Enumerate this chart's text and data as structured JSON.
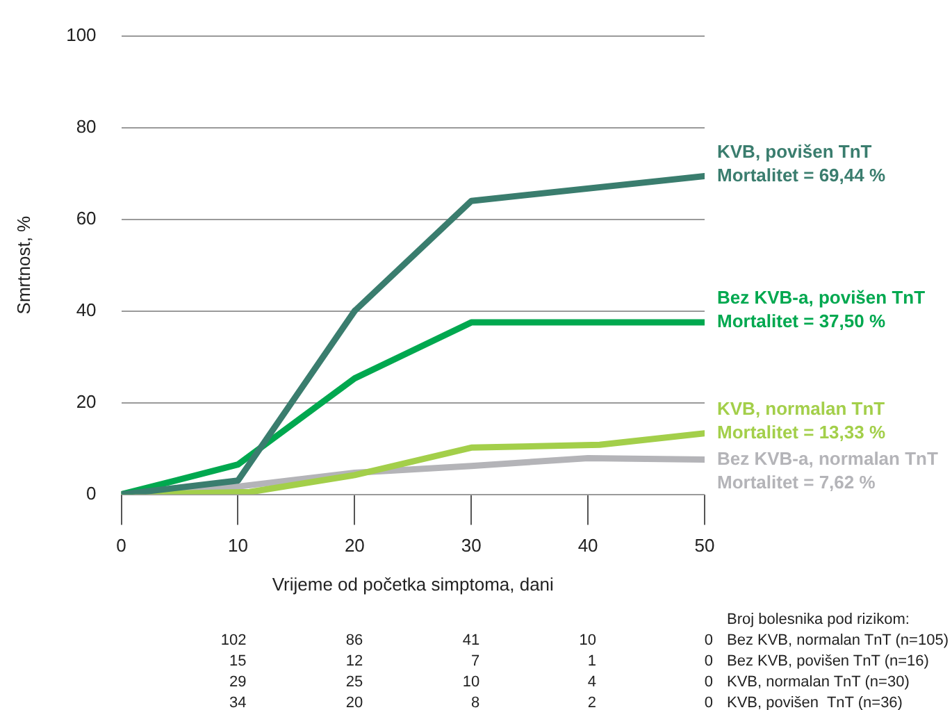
{
  "chart_data": {
    "type": "line",
    "xlabel": "Vrijeme od početka simptoma, dani",
    "ylabel": "Smrtnost, %",
    "xlim": [
      0,
      50
    ],
    "xticks": [
      0,
      10,
      20,
      30,
      40,
      50
    ],
    "ylim": [
      0,
      100
    ],
    "yticks": [
      0,
      20,
      40,
      60,
      80,
      100
    ],
    "grid": "y",
    "legend": false,
    "marker": "none",
    "line_style": "solid",
    "series": [
      {
        "name": "KVB, povišen TnT",
        "color": "#3a7d6e",
        "x": [
          0,
          10,
          20,
          30,
          50
        ],
        "values": [
          0,
          3,
          40,
          64,
          69.4
        ]
      },
      {
        "name": "Bez KVB-a, povišen TnT",
        "color": "#00a84f",
        "x": [
          0,
          10,
          20,
          30,
          50
        ],
        "values": [
          0,
          6.5,
          25.3,
          37.5,
          37.5
        ]
      },
      {
        "name": "KVB, normalan TnT",
        "color": "#a3cf4a",
        "x": [
          0,
          11,
          20,
          30,
          41,
          50
        ],
        "values": [
          0,
          0.5,
          4.2,
          10.2,
          10.8,
          13.3
        ]
      },
      {
        "name": "Bez KVB-a, normalan TnT",
        "color": "#b4b4b8",
        "x": [
          0,
          10,
          20,
          30,
          40,
          50
        ],
        "values": [
          0,
          1.7,
          4.7,
          6.2,
          7.9,
          7.6
        ]
      }
    ],
    "annotations": [
      "Mortalitet = 69,44 %",
      "Mortalitet = 37,50 %",
      "Mortalitet = 13,33 %",
      "Mortalitet = 7,62 %",
      "Broj bolesnika pod rizikom:",
      "102 86 41 10 0 Bez KVB, normalan TnT (n=105)",
      "15 12 7 1 0 Bez KVB, povišen TnT (n=16)",
      "29 25 10 4 0 KVB, normalan TnT (n=30)",
      "34 20 8 2 0 KVB, povišen  TnT (n=36)"
    ]
  }
}
